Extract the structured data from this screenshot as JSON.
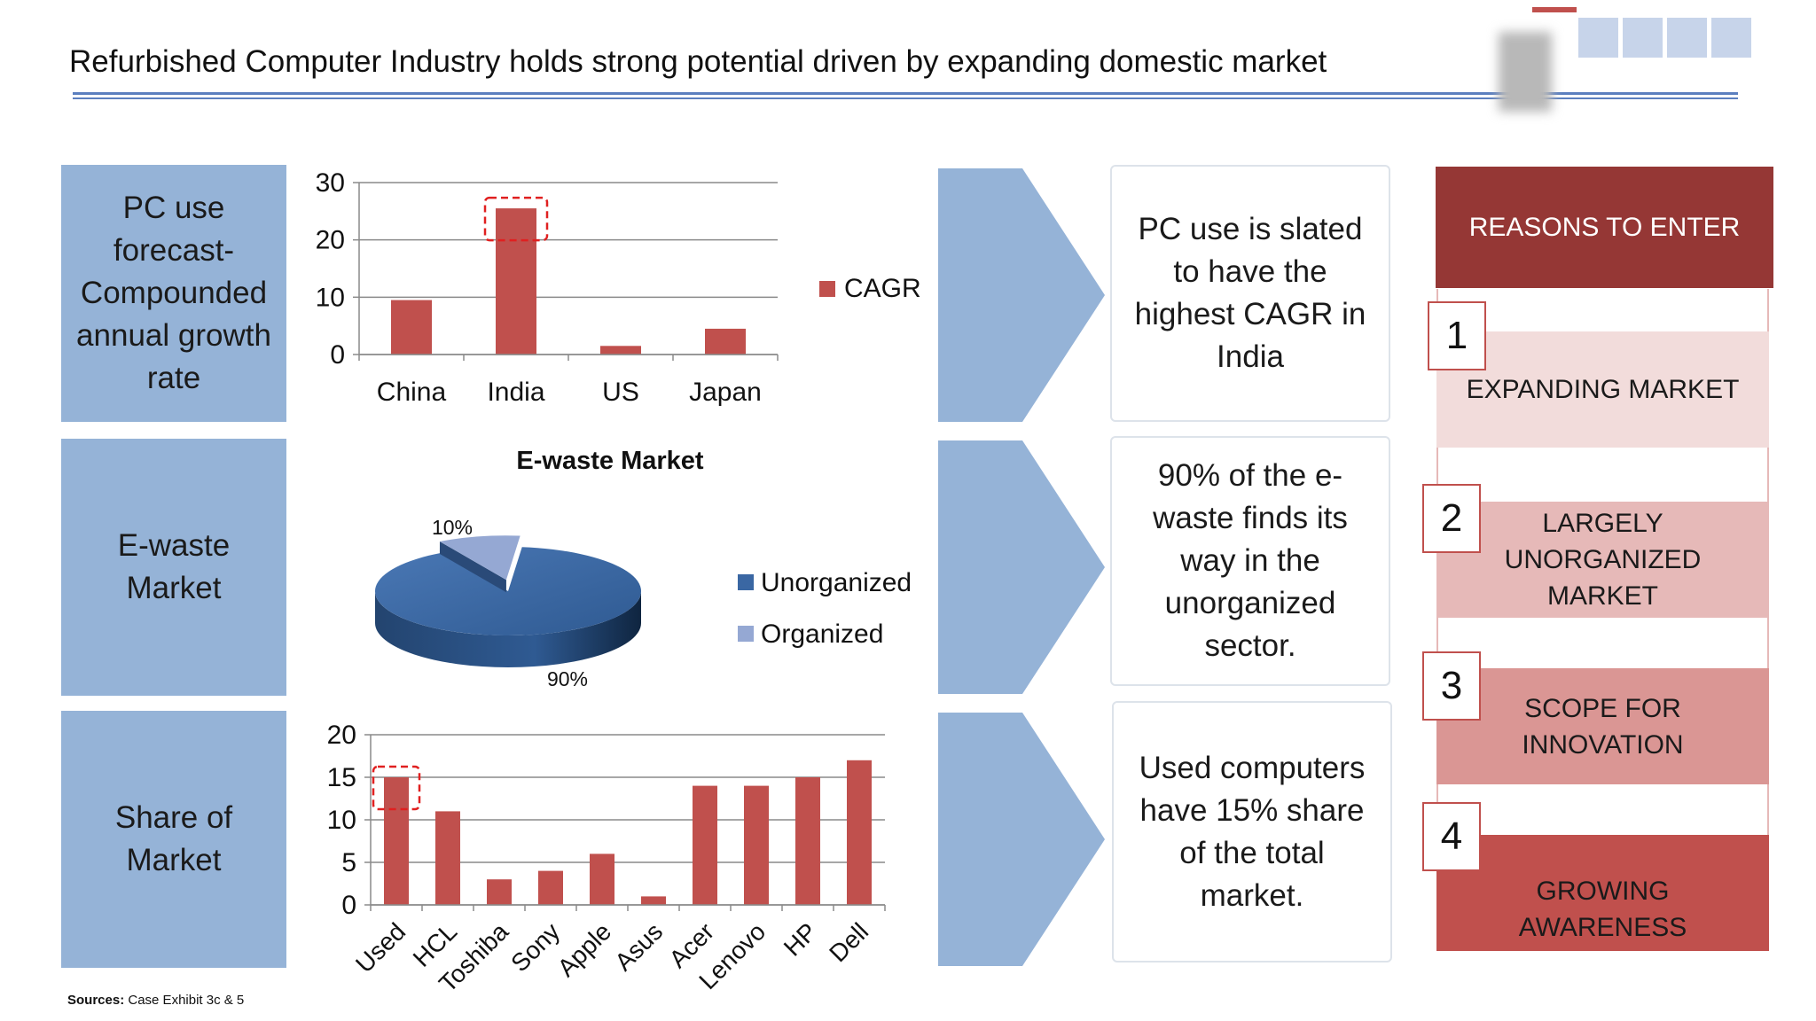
{
  "slide": {
    "title": "Refurbished Computer Industry holds strong potential driven by expanding domestic market",
    "sources_label": "Sources:",
    "sources_text": "Case Exhibit 3c & 5"
  },
  "side_labels": [
    "PC use forecast-Compounded annual growth rate",
    "E-waste Market",
    "Share of Market"
  ],
  "notes": [
    "PC use is slated to have the highest CAGR in India",
    "90% of the e-waste finds its way in the unorganized sector.",
    "Used computers have 15% share of the total market."
  ],
  "reasons": {
    "header": "REASONS TO ENTER",
    "items": [
      {
        "number": "1",
        "label": "EXPANDING MARKET",
        "color": "#f2dcdb"
      },
      {
        "number": "2",
        "label": "LARGELY UNORGANIZED MARKET",
        "color": "#e6b9b8"
      },
      {
        "number": "3",
        "label": "SCOPE FOR INNOVATION",
        "color": "#da9694"
      },
      {
        "number": "4",
        "label": "GROWING AWARENESS",
        "color": "#c0504d"
      }
    ],
    "header_color": "#953735"
  },
  "colors": {
    "side_box": "#95b3d7",
    "bar": "#c0504d",
    "pie_unorganized": "#3a67a3",
    "pie_organized": "#95a8d3",
    "highlight": "#e02020"
  },
  "chart_data": [
    {
      "type": "bar",
      "categories": [
        "China",
        "India",
        "US",
        "Japan"
      ],
      "series": [
        {
          "name": "CAGR",
          "values": [
            9.5,
            25.5,
            1.5,
            4.5
          ]
        }
      ],
      "ylim": [
        0,
        30
      ],
      "yticks": [
        0,
        10,
        20,
        30
      ],
      "highlight": "India",
      "grid": true,
      "legend": "right"
    },
    {
      "type": "pie",
      "title": "E-waste Market",
      "labels": [
        "Unorganized",
        "Organized"
      ],
      "values": [
        90,
        10
      ],
      "value_labels": [
        "90%",
        "10%"
      ],
      "legend": "right"
    },
    {
      "type": "bar",
      "categories": [
        "Used",
        "HCL",
        "Toshiba",
        "Sony",
        "Apple",
        "Asus",
        "Acer",
        "Lenovo",
        "HP",
        "Dell"
      ],
      "values": [
        15,
        11,
        3,
        4,
        6,
        1,
        14,
        14,
        15,
        17
      ],
      "ylim": [
        0,
        20
      ],
      "yticks": [
        0,
        5,
        10,
        15,
        20
      ],
      "highlight": "Used",
      "grid": true
    }
  ]
}
